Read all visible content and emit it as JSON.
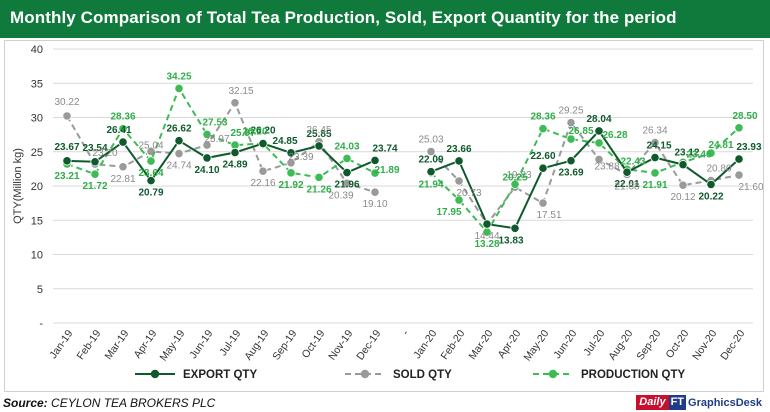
{
  "title": "Monthly Comparison of Total Tea Production, Sold, Export Quantity for the period",
  "source": {
    "label": "Source:",
    "value": "CEYLON TEA BROKERS PLC"
  },
  "brand": {
    "part1": "Daily",
    "part2": "FT",
    "part3": "GraphicsDesk"
  },
  "colors": {
    "title_bar": "#0f7a3c",
    "export": "#0f5a2c",
    "sold": "#9a9a9a",
    "production": "#3dbb55"
  },
  "chart_data": {
    "type": "line",
    "title": "Monthly Comparison of Total Tea Production, Sold, Export Quantity for the period",
    "ylabel": "QTY(Million kg)",
    "xlabel": "",
    "ylim": [
      0,
      40
    ],
    "yticks": [
      "-",
      "5",
      "10",
      "15",
      "20",
      "25",
      "30",
      "35",
      "40"
    ],
    "categories": [
      "Jan-19",
      "Feb-19",
      "Mar-19",
      "Apr-19",
      "May-19",
      "Jun-19",
      "Jul-19",
      "Aug-19",
      "Sep-19",
      "Oct-19",
      "Nov-19",
      "Dec-19",
      "",
      "Jan-20",
      "Feb-20",
      "Mar-20",
      "Apr-20",
      "May-20",
      "Jun-20",
      "Jul-20",
      "Aug-20",
      "Sep-20",
      "Oct-20",
      "Nov-20",
      "Dec-20"
    ],
    "grid": true,
    "legend_position": "bottom",
    "series": [
      {
        "name": "EXPORT QTY",
        "style": "solid",
        "values": [
          23.67,
          23.54,
          26.41,
          20.79,
          26.62,
          24.1,
          24.89,
          26.2,
          24.85,
          25.85,
          21.96,
          23.74,
          null,
          22.09,
          23.66,
          14.44,
          13.83,
          22.6,
          23.69,
          28.04,
          22.01,
          24.15,
          23.12,
          20.22,
          23.93
        ],
        "labels": [
          "23.67",
          "23.54",
          "26.41",
          "20.79",
          "26.62",
          "24.10",
          "24.89",
          "26.20",
          "24.85",
          "25.85",
          "21.96",
          "23.74",
          "",
          "22.09",
          "23.66",
          "",
          "13.83",
          "22.60",
          "23.69",
          "28.04",
          "22.01",
          "24.15",
          "23.12",
          "20.22",
          "23.93"
        ]
      },
      {
        "name": "SOLD QTY",
        "style": "dashed",
        "values": [
          30.22,
          23.2,
          22.81,
          25.04,
          24.74,
          25.97,
          32.15,
          22.16,
          23.39,
          26.45,
          20.39,
          19.1,
          null,
          25.03,
          20.73,
          14.44,
          19.83,
          17.51,
          29.25,
          23.88,
          21.68,
          26.34,
          20.12,
          20.8,
          21.6
        ],
        "labels": [
          "30.22",
          "23.20",
          "22.81",
          "25.04",
          "24.74",
          "25.97",
          "32.15",
          "22.16",
          "23.39",
          "26.45",
          "20.39",
          "19.10",
          "",
          "25.03",
          "20.73",
          "14.44",
          "19.83",
          "17.51",
          "29.25",
          "23.88",
          "21.68",
          "26.34",
          "20.12",
          "20.80",
          "21.60"
        ]
      },
      {
        "name": "PRODUCTION QTY",
        "style": "dashed",
        "values": [
          23.21,
          21.72,
          28.36,
          23.64,
          34.25,
          27.53,
          25.97,
          26.2,
          21.92,
          21.26,
          24.03,
          21.89,
          null,
          21.94,
          17.95,
          13.28,
          20.25,
          28.36,
          26.85,
          26.28,
          22.43,
          21.91,
          23.46,
          24.81,
          28.5
        ],
        "labels": [
          "23.21",
          "21.72",
          "28.36",
          "23.64",
          "34.25",
          "27.53",
          "25.97",
          "26.20",
          "21.92",
          "21.26",
          "24.03",
          "21.89",
          "",
          "21.94",
          "17.95",
          "13.28",
          "20.25",
          "28.36",
          "26.85",
          "26.28",
          "22.43",
          "21.91",
          "23.46",
          "24.81",
          "28.50"
        ]
      }
    ]
  }
}
